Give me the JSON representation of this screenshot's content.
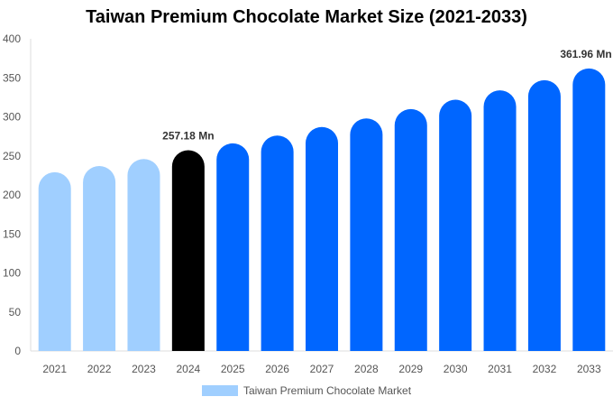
{
  "chart_data": {
    "type": "bar",
    "title": "Taiwan Premium Chocolate Market Size (2021-2033)",
    "categories": [
      "2021",
      "2022",
      "2023",
      "2024",
      "2025",
      "2026",
      "2027",
      "2028",
      "2029",
      "2030",
      "2031",
      "2032",
      "2033"
    ],
    "series": [
      {
        "name": "Taiwan Premium Chocolate Market",
        "values": [
          229,
          237,
          246,
          257.18,
          266,
          276,
          287,
          298,
          310,
          322,
          334,
          347,
          361.96
        ]
      }
    ],
    "data_labels": [
      {
        "index": 3,
        "text": "257.18 Mn"
      },
      {
        "index": 12,
        "text": "361.96 Mn"
      }
    ],
    "ylim": [
      0,
      400
    ],
    "yticks": [
      0,
      50,
      100,
      150,
      200,
      250,
      300,
      350,
      400
    ],
    "grid": false,
    "legend": "bottom",
    "colors": {
      "historical": "#a0cfff",
      "current": "#000000",
      "forecast": "#0066ff"
    }
  }
}
